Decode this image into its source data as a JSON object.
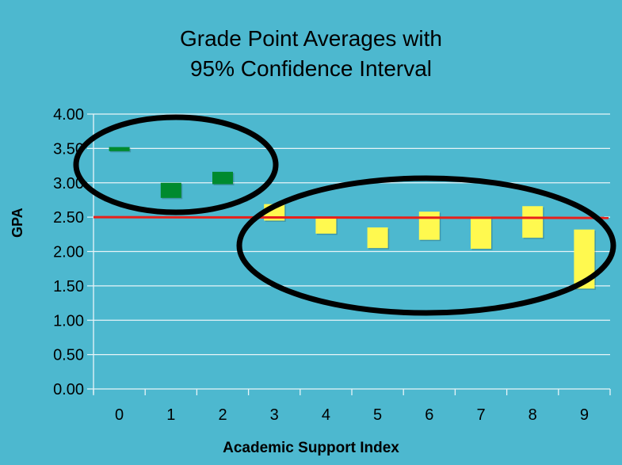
{
  "chart_data": {
    "type": "bar",
    "subtype": "floating-range (confidence interval)",
    "title": "Grade Point Averages with 95% Confidence Interval",
    "title_lines": [
      "Grade Point Averages with",
      "95% Confidence Interval"
    ],
    "xlabel": "Academic Support Index",
    "ylabel": "GPA",
    "categories": [
      "0",
      "1",
      "2",
      "3",
      "4",
      "5",
      "6",
      "7",
      "8",
      "9"
    ],
    "y_ticks": [
      "0.00",
      "0.50",
      "1.00",
      "1.50",
      "2.00",
      "2.50",
      "3.00",
      "3.50",
      "4.00"
    ],
    "ylim": [
      0,
      4
    ],
    "grid": true,
    "legend": null,
    "series": [
      {
        "name": "95% CI",
        "lower": [
          3.46,
          2.78,
          2.98,
          2.45,
          2.26,
          2.05,
          2.17,
          2.04,
          2.2,
          1.46
        ],
        "upper": [
          3.52,
          3.0,
          3.16,
          2.69,
          2.5,
          2.35,
          2.58,
          2.51,
          2.66,
          2.32
        ],
        "colors": [
          "#008a2e",
          "#008a2e",
          "#008a2e",
          "#fff94f",
          "#fff94f",
          "#fff94f",
          "#fff94f",
          "#fff94f",
          "#fff94f",
          "#fff94f"
        ]
      }
    ],
    "reference_line": {
      "y": 2.5,
      "color": "#e8201b"
    },
    "annotations": [
      {
        "type": "ellipse",
        "encloses": [
          "0",
          "1",
          "2"
        ],
        "color": "#000000"
      },
      {
        "type": "ellipse",
        "encloses": [
          "3",
          "4",
          "5",
          "6",
          "7",
          "8",
          "9"
        ],
        "color": "#000000"
      }
    ]
  },
  "colors": {
    "background": "#4db8cf",
    "grid": "#e8f4f8",
    "green": "#008a2e",
    "yellow": "#fff94f",
    "red": "#e8201b"
  }
}
